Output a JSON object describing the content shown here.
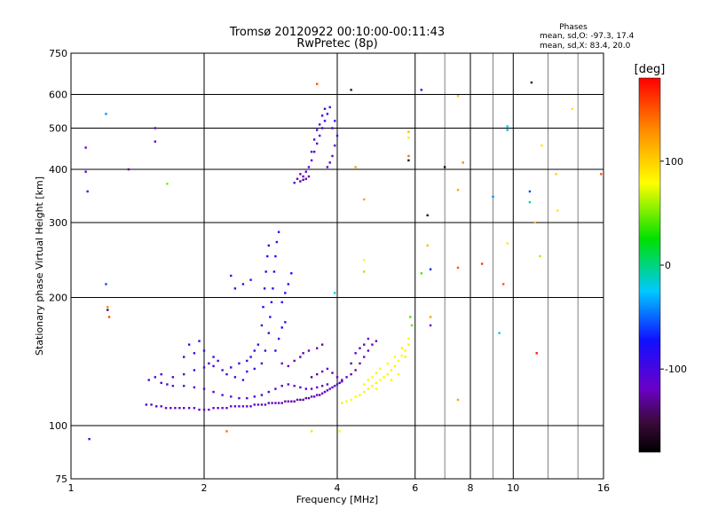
{
  "chart_data": {
    "type": "scatter",
    "title": "Tromsø 20120922 00:10:00-00:11:43",
    "subtitle": "RwPretec (8p)",
    "xlabel": "Frequency [MHz]",
    "ylabel": "Stationary phase Virtual Height [km]",
    "x_scale": "log",
    "y_scale": "log",
    "xlim": [
      1,
      16
    ],
    "ylim": [
      75,
      750
    ],
    "x_ticks": [
      1,
      2,
      4,
      6,
      8,
      10,
      16
    ],
    "y_ticks": [
      75,
      100,
      200,
      300,
      400,
      500,
      600,
      750
    ],
    "x_tick_labels": [
      "1",
      "2",
      "4",
      "6",
      "8",
      "10",
      "16"
    ],
    "y_tick_labels": [
      "75",
      "100",
      "200",
      "300",
      "400",
      "500",
      "600",
      "750"
    ],
    "grid": true,
    "stats": {
      "heading": "Phases",
      "line_o": "mean, sd,O: -97.3, 17.4",
      "line_x": "mean, sd,X:  83.4, 20.0"
    },
    "colorbar": {
      "label": "[deg]",
      "range": [
        -180,
        180
      ],
      "ticks": [
        100,
        0,
        -100
      ],
      "tick_labels": [
        "100",
        "0",
        "-100"
      ]
    },
    "series_description": "Ionogram echoes: each point = (frequency MHz, virtual height km, phase deg)",
    "points": [
      [
        1.48,
        112,
        -105
      ],
      [
        1.52,
        112,
        -110
      ],
      [
        1.56,
        111,
        -112
      ],
      [
        1.6,
        111,
        -108
      ],
      [
        1.64,
        110,
        -115
      ],
      [
        1.68,
        110,
        -118
      ],
      [
        1.72,
        110,
        -112
      ],
      [
        1.76,
        110,
        -110
      ],
      [
        1.8,
        110,
        -114
      ],
      [
        1.85,
        110,
        -116
      ],
      [
        1.9,
        110,
        -118
      ],
      [
        1.95,
        109,
        -112
      ],
      [
        2.0,
        109,
        -115
      ],
      [
        2.05,
        109,
        -120
      ],
      [
        2.1,
        110,
        -118
      ],
      [
        2.15,
        110,
        -114
      ],
      [
        2.2,
        110,
        -116
      ],
      [
        2.25,
        110,
        -112
      ],
      [
        2.3,
        111,
        -118
      ],
      [
        2.35,
        111,
        -115
      ],
      [
        2.4,
        111,
        -120
      ],
      [
        2.45,
        111,
        -118
      ],
      [
        2.5,
        111,
        -112
      ],
      [
        2.55,
        111,
        -116
      ],
      [
        2.6,
        112,
        -118
      ],
      [
        2.65,
        112,
        -120
      ],
      [
        2.7,
        112,
        -115
      ],
      [
        2.75,
        112,
        -118
      ],
      [
        2.8,
        113,
        -122
      ],
      [
        2.85,
        113,
        -120
      ],
      [
        2.9,
        113,
        -125
      ],
      [
        2.95,
        113,
        -122
      ],
      [
        3.0,
        113,
        -126
      ],
      [
        3.05,
        114,
        -124
      ],
      [
        3.1,
        114,
        -128
      ],
      [
        3.15,
        114,
        -126
      ],
      [
        3.2,
        114,
        -130
      ],
      [
        3.25,
        115,
        -128
      ],
      [
        3.3,
        115,
        -132
      ],
      [
        3.35,
        115,
        -130
      ],
      [
        3.4,
        116,
        -128
      ],
      [
        3.45,
        116,
        -126
      ],
      [
        3.5,
        117,
        -124
      ],
      [
        3.55,
        117,
        -120
      ],
      [
        3.6,
        118,
        -122
      ],
      [
        3.65,
        118,
        -118
      ],
      [
        3.7,
        119,
        -120
      ],
      [
        3.75,
        120,
        -115
      ],
      [
        3.8,
        121,
        -112
      ],
      [
        3.85,
        122,
        -110
      ],
      [
        3.9,
        123,
        -108
      ],
      [
        3.95,
        124,
        -110
      ],
      [
        4.0,
        125,
        -105
      ],
      [
        4.05,
        126,
        -108
      ],
      [
        4.1,
        127,
        -110
      ],
      [
        1.6,
        126,
        -108
      ],
      [
        1.65,
        125,
        -105
      ],
      [
        1.7,
        124,
        -110
      ],
      [
        1.8,
        124,
        -108
      ],
      [
        1.9,
        123,
        -106
      ],
      [
        2.0,
        122,
        -104
      ],
      [
        2.1,
        120,
        -108
      ],
      [
        2.2,
        118,
        -106
      ],
      [
        2.3,
        117,
        -110
      ],
      [
        2.4,
        116,
        -108
      ],
      [
        2.5,
        116,
        -106
      ],
      [
        2.6,
        117,
        -104
      ],
      [
        2.7,
        118,
        -108
      ],
      [
        2.8,
        120,
        -110
      ],
      [
        2.9,
        122,
        -106
      ],
      [
        3.0,
        124,
        -104
      ],
      [
        3.1,
        125,
        -108
      ],
      [
        3.2,
        124,
        -112
      ],
      [
        3.3,
        123,
        -110
      ],
      [
        3.4,
        122,
        -114
      ],
      [
        3.5,
        122,
        -112
      ],
      [
        3.6,
        123,
        -116
      ],
      [
        3.7,
        124,
        -118
      ],
      [
        3.8,
        125,
        -114
      ],
      [
        1.5,
        128,
        -102
      ],
      [
        1.55,
        130,
        -104
      ],
      [
        1.6,
        132,
        -100
      ],
      [
        1.7,
        130,
        -102
      ],
      [
        1.8,
        132,
        -104
      ],
      [
        1.9,
        135,
        -100
      ],
      [
        2.0,
        137,
        -102
      ],
      [
        2.05,
        140,
        -100
      ],
      [
        2.1,
        138,
        -104
      ],
      [
        2.2,
        135,
        -102
      ],
      [
        2.3,
        137,
        -100
      ],
      [
        2.4,
        140,
        -98
      ],
      [
        2.5,
        142,
        -102
      ],
      [
        2.55,
        145,
        -100
      ],
      [
        2.6,
        150,
        -98
      ],
      [
        2.65,
        155,
        -100
      ],
      [
        2.1,
        145,
        -98
      ],
      [
        2.0,
        150,
        -100
      ],
      [
        1.9,
        148,
        -102
      ],
      [
        1.8,
        145,
        -100
      ],
      [
        1.85,
        155,
        -98
      ],
      [
        1.95,
        158,
        -96
      ],
      [
        2.15,
        142,
        -104
      ],
      [
        2.25,
        132,
        -106
      ],
      [
        2.35,
        130,
        -104
      ],
      [
        2.45,
        128,
        -102
      ],
      [
        2.5,
        134,
        -100
      ],
      [
        2.6,
        136,
        -98
      ],
      [
        2.7,
        140,
        -96
      ],
      [
        2.75,
        150,
        -94
      ],
      [
        2.8,
        165,
        -92
      ],
      [
        2.82,
        180,
        -90
      ],
      [
        2.84,
        195,
        -88
      ],
      [
        2.86,
        210,
        -86
      ],
      [
        2.88,
        230,
        -84
      ],
      [
        2.9,
        250,
        -82
      ],
      [
        2.92,
        270,
        -80
      ],
      [
        2.95,
        285,
        -78
      ],
      [
        2.7,
        172,
        -92
      ],
      [
        2.72,
        190,
        -90
      ],
      [
        2.74,
        210,
        -88
      ],
      [
        2.76,
        230,
        -86
      ],
      [
        2.78,
        250,
        -84
      ],
      [
        2.8,
        265,
        -82
      ],
      [
        3.0,
        195,
        -90
      ],
      [
        3.05,
        205,
        -88
      ],
      [
        3.1,
        215,
        -86
      ],
      [
        3.15,
        228,
        -84
      ],
      [
        2.9,
        150,
        -96
      ],
      [
        2.95,
        160,
        -94
      ],
      [
        3.0,
        170,
        -92
      ],
      [
        3.05,
        175,
        -90
      ],
      [
        2.35,
        210,
        -100
      ],
      [
        2.45,
        215,
        -98
      ],
      [
        2.55,
        220,
        -96
      ],
      [
        2.3,
        225,
        -102
      ],
      [
        3.3,
        390,
        -120
      ],
      [
        3.35,
        385,
        -122
      ],
      [
        3.4,
        380,
        -124
      ],
      [
        3.45,
        385,
        -126
      ],
      [
        3.3,
        375,
        -128
      ],
      [
        3.35,
        378,
        -130
      ],
      [
        3.2,
        372,
        -126
      ],
      [
        3.25,
        380,
        -124
      ],
      [
        3.4,
        395,
        -118
      ],
      [
        3.45,
        405,
        -116
      ],
      [
        3.5,
        420,
        -114
      ],
      [
        3.55,
        440,
        -112
      ],
      [
        3.6,
        460,
        -110
      ],
      [
        3.65,
        480,
        -108
      ],
      [
        3.7,
        500,
        -106
      ],
      [
        3.75,
        520,
        -104
      ],
      [
        3.8,
        540,
        -102
      ],
      [
        3.85,
        560,
        -100
      ],
      [
        3.5,
        440,
        -112
      ],
      [
        3.55,
        470,
        -110
      ],
      [
        3.6,
        495,
        -108
      ],
      [
        3.65,
        510,
        -106
      ],
      [
        3.7,
        535,
        -104
      ],
      [
        3.75,
        555,
        -102
      ],
      [
        3.9,
        430,
        -110
      ],
      [
        3.95,
        455,
        -108
      ],
      [
        4.0,
        480,
        -106
      ],
      [
        3.85,
        415,
        -112
      ],
      [
        3.8,
        405,
        -114
      ],
      [
        3.9,
        500,
        -104
      ],
      [
        3.95,
        520,
        -102
      ],
      [
        3.0,
        140,
        -118
      ],
      [
        3.1,
        138,
        -122
      ],
      [
        3.2,
        142,
        -126
      ],
      [
        3.3,
        145,
        -130
      ],
      [
        3.35,
        148,
        -128
      ],
      [
        3.45,
        150,
        -126
      ],
      [
        3.6,
        152,
        -124
      ],
      [
        3.7,
        155,
        -126
      ],
      [
        3.5,
        130,
        -130
      ],
      [
        3.6,
        132,
        -128
      ],
      [
        3.7,
        134,
        -126
      ],
      [
        3.8,
        136,
        -124
      ],
      [
        3.9,
        133,
        -122
      ],
      [
        4.0,
        130,
        -120
      ],
      [
        4.1,
        128,
        -122
      ],
      [
        4.2,
        130,
        -124
      ],
      [
        4.3,
        132,
        -126
      ],
      [
        4.4,
        135,
        -124
      ],
      [
        4.5,
        140,
        -122
      ],
      [
        4.6,
        145,
        -120
      ],
      [
        4.7,
        150,
        -118
      ],
      [
        4.8,
        155,
        -120
      ],
      [
        4.9,
        158,
        -122
      ],
      [
        4.4,
        148,
        -124
      ],
      [
        4.5,
        152,
        -122
      ],
      [
        4.6,
        155,
        -120
      ],
      [
        4.7,
        160,
        -118
      ],
      [
        4.3,
        140,
        -126
      ],
      [
        4.1,
        113,
        75
      ],
      [
        4.2,
        114,
        78
      ],
      [
        4.3,
        115,
        80
      ],
      [
        4.4,
        117,
        82
      ],
      [
        4.5,
        118,
        84
      ],
      [
        4.6,
        120,
        86
      ],
      [
        4.7,
        122,
        85
      ],
      [
        4.8,
        124,
        84
      ],
      [
        4.9,
        126,
        83
      ],
      [
        5.0,
        128,
        82
      ],
      [
        5.1,
        130,
        84
      ],
      [
        5.2,
        132,
        86
      ],
      [
        5.3,
        135,
        85
      ],
      [
        5.4,
        138,
        84
      ],
      [
        5.5,
        142,
        83
      ],
      [
        5.6,
        146,
        82
      ],
      [
        5.7,
        150,
        84
      ],
      [
        5.8,
        155,
        86
      ],
      [
        4.6,
        125,
        80
      ],
      [
        4.7,
        128,
        78
      ],
      [
        4.8,
        130,
        80
      ],
      [
        4.9,
        133,
        82
      ],
      [
        5.0,
        136,
        84
      ],
      [
        5.2,
        140,
        82
      ],
      [
        5.4,
        145,
        84
      ],
      [
        5.6,
        152,
        86
      ],
      [
        5.8,
        160,
        84
      ],
      [
        5.9,
        172,
        45
      ],
      [
        5.85,
        180,
        40
      ],
      [
        5.7,
        145,
        88
      ],
      [
        5.5,
        132,
        85
      ],
      [
        5.3,
        128,
        83
      ],
      [
        4.9,
        122,
        81
      ],
      [
        1.08,
        450,
        -120
      ],
      [
        1.08,
        395,
        -110
      ],
      [
        1.09,
        355,
        -115
      ],
      [
        1.1,
        93,
        -100
      ],
      [
        1.2,
        540,
        -40
      ],
      [
        1.2,
        215,
        -60
      ],
      [
        1.21,
        190,
        130
      ],
      [
        1.22,
        180,
        150
      ],
      [
        1.21,
        187,
        -140
      ],
      [
        1.35,
        400,
        -130
      ],
      [
        1.55,
        500,
        -120
      ],
      [
        1.55,
        465,
        -118
      ],
      [
        1.65,
        370,
        50
      ],
      [
        2.25,
        97,
        140
      ],
      [
        3.5,
        97,
        70
      ],
      [
        3.6,
        635,
        150
      ],
      [
        4.3,
        615,
        -150
      ],
      [
        3.95,
        205,
        -20
      ],
      [
        4.05,
        97,
        80
      ],
      [
        4.4,
        405,
        120
      ],
      [
        4.6,
        340,
        120
      ],
      [
        4.6,
        245,
        80
      ],
      [
        4.6,
        230,
        60
      ],
      [
        5.8,
        490,
        110
      ],
      [
        5.8,
        475,
        90
      ],
      [
        5.8,
        430,
        140
      ],
      [
        5.8,
        420,
        -160
      ],
      [
        6.2,
        615,
        -70
      ],
      [
        6.2,
        228,
        40
      ],
      [
        6.4,
        312,
        -160
      ],
      [
        6.4,
        265,
        110
      ],
      [
        6.5,
        233,
        -70
      ],
      [
        6.5,
        180,
        120
      ],
      [
        6.5,
        172,
        -120
      ],
      [
        7.0,
        405,
        -170
      ],
      [
        7.5,
        595,
        110
      ],
      [
        7.5,
        358,
        120
      ],
      [
        7.5,
        235,
        150
      ],
      [
        7.5,
        115,
        120
      ],
      [
        7.7,
        415,
        130
      ],
      [
        8.5,
        240,
        160
      ],
      [
        9.0,
        345,
        -40
      ],
      [
        9.3,
        165,
        -20
      ],
      [
        9.5,
        215,
        150
      ],
      [
        9.7,
        505,
        -20
      ],
      [
        9.7,
        495,
        -30
      ],
      [
        9.7,
        268,
        90
      ],
      [
        11.0,
        640,
        -150
      ],
      [
        10.9,
        355,
        -60
      ],
      [
        10.9,
        335,
        -10
      ],
      [
        11.2,
        300,
        110
      ],
      [
        11.3,
        148,
        170
      ],
      [
        11.5,
        250,
        60
      ],
      [
        11.6,
        455,
        90
      ],
      [
        12.5,
        390,
        100
      ],
      [
        12.6,
        320,
        90
      ],
      [
        13.6,
        555,
        90
      ],
      [
        15.8,
        390,
        150
      ]
    ]
  }
}
